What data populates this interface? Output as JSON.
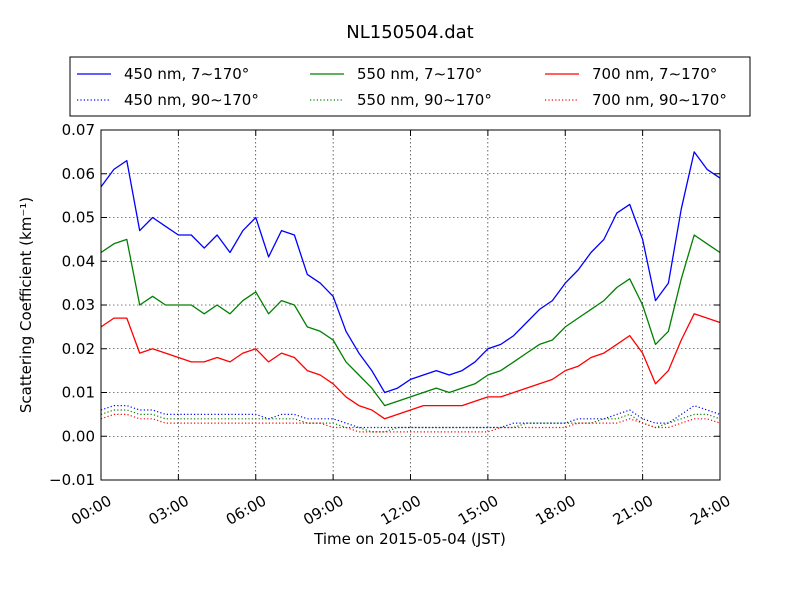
{
  "chart_data": {
    "type": "line",
    "title": "NL150504.dat",
    "xlabel": "Time on 2015-05-04 (JST)",
    "ylabel": "Scattering Coefficient (km⁻¹)",
    "xlim": [
      "00:00",
      "24:00"
    ],
    "ylim": [
      -0.01,
      0.07
    ],
    "x_ticks": [
      "00:00",
      "03:00",
      "06:00",
      "09:00",
      "12:00",
      "15:00",
      "18:00",
      "21:00",
      "24:00"
    ],
    "y_ticks": [
      "−0.01",
      "0.00",
      "0.01",
      "0.02",
      "0.03",
      "0.04",
      "0.05",
      "0.06",
      "0.07"
    ],
    "grid": true,
    "legend_position": "top, above plot (3 columns)",
    "x_hours": [
      0,
      0.5,
      1,
      1.5,
      2,
      2.5,
      3,
      3.5,
      4,
      4.5,
      5,
      5.5,
      6,
      6.5,
      7,
      7.5,
      8,
      8.5,
      9,
      9.5,
      10,
      10.5,
      11,
      11.5,
      12,
      12.5,
      13,
      13.5,
      14,
      14.5,
      15,
      15.5,
      16,
      16.5,
      17,
      17.5,
      18,
      18.5,
      19,
      19.5,
      20,
      20.5,
      21,
      21.5,
      22,
      22.5,
      23,
      23.5,
      24
    ],
    "series": [
      {
        "name": "450 nm, 7∼170°",
        "color": "#0000ff",
        "style": "solid",
        "values": [
          0.057,
          0.061,
          0.063,
          0.047,
          0.05,
          0.048,
          0.046,
          0.046,
          0.043,
          0.046,
          0.042,
          0.047,
          0.05,
          0.041,
          0.047,
          0.046,
          0.037,
          0.035,
          0.032,
          0.024,
          0.019,
          0.015,
          0.01,
          0.011,
          0.013,
          0.014,
          0.015,
          0.014,
          0.015,
          0.017,
          0.02,
          0.021,
          0.023,
          0.026,
          0.029,
          0.031,
          0.035,
          0.038,
          0.042,
          0.045,
          0.051,
          0.053,
          0.045,
          0.031,
          0.035,
          0.052,
          0.065,
          0.061,
          0.059
        ]
      },
      {
        "name": "450 nm, 90∼170°",
        "color": "#0000ff",
        "style": "dotted",
        "values": [
          0.006,
          0.007,
          0.007,
          0.006,
          0.006,
          0.005,
          0.005,
          0.005,
          0.005,
          0.005,
          0.005,
          0.005,
          0.005,
          0.004,
          0.005,
          0.005,
          0.004,
          0.004,
          0.004,
          0.003,
          0.002,
          0.002,
          0.002,
          0.002,
          0.002,
          0.002,
          0.002,
          0.002,
          0.002,
          0.002,
          0.002,
          0.002,
          0.003,
          0.003,
          0.003,
          0.003,
          0.003,
          0.004,
          0.004,
          0.004,
          0.005,
          0.006,
          0.004,
          0.003,
          0.003,
          0.005,
          0.007,
          0.006,
          0.005
        ]
      },
      {
        "name": "550 nm, 7∼170°",
        "color": "#008000",
        "style": "solid",
        "values": [
          0.042,
          0.044,
          0.045,
          0.03,
          0.032,
          0.03,
          0.03,
          0.03,
          0.028,
          0.03,
          0.028,
          0.031,
          0.033,
          0.028,
          0.031,
          0.03,
          0.025,
          0.024,
          0.022,
          0.017,
          0.014,
          0.011,
          0.007,
          0.008,
          0.009,
          0.01,
          0.011,
          0.01,
          0.011,
          0.012,
          0.014,
          0.015,
          0.017,
          0.019,
          0.021,
          0.022,
          0.025,
          0.027,
          0.029,
          0.031,
          0.034,
          0.036,
          0.03,
          0.021,
          0.024,
          0.036,
          0.046,
          0.044,
          0.042
        ]
      },
      {
        "name": "550 nm, 90∼170°",
        "color": "#008000",
        "style": "dotted",
        "values": [
          0.005,
          0.006,
          0.006,
          0.005,
          0.005,
          0.004,
          0.004,
          0.004,
          0.004,
          0.004,
          0.004,
          0.004,
          0.004,
          0.004,
          0.004,
          0.004,
          0.003,
          0.003,
          0.003,
          0.002,
          0.002,
          0.001,
          0.001,
          0.002,
          0.002,
          0.002,
          0.002,
          0.002,
          0.002,
          0.002,
          0.002,
          0.002,
          0.002,
          0.003,
          0.003,
          0.003,
          0.003,
          0.003,
          0.003,
          0.004,
          0.004,
          0.005,
          0.003,
          0.002,
          0.003,
          0.004,
          0.005,
          0.005,
          0.004
        ]
      },
      {
        "name": "700 nm, 7∼170°",
        "color": "#ff0000",
        "style": "solid",
        "values": [
          0.025,
          0.027,
          0.027,
          0.019,
          0.02,
          0.019,
          0.018,
          0.017,
          0.017,
          0.018,
          0.017,
          0.019,
          0.02,
          0.017,
          0.019,
          0.018,
          0.015,
          0.014,
          0.012,
          0.009,
          0.007,
          0.006,
          0.004,
          0.005,
          0.006,
          0.007,
          0.007,
          0.007,
          0.007,
          0.008,
          0.009,
          0.009,
          0.01,
          0.011,
          0.012,
          0.013,
          0.015,
          0.016,
          0.018,
          0.019,
          0.021,
          0.023,
          0.019,
          0.012,
          0.015,
          0.022,
          0.028,
          0.027,
          0.026
        ]
      },
      {
        "name": "700 nm, 90∼170°",
        "color": "#ff0000",
        "style": "dotted",
        "values": [
          0.004,
          0.005,
          0.005,
          0.004,
          0.004,
          0.003,
          0.003,
          0.003,
          0.003,
          0.003,
          0.003,
          0.003,
          0.003,
          0.003,
          0.003,
          0.003,
          0.003,
          0.003,
          0.002,
          0.002,
          0.001,
          0.001,
          0.001,
          0.001,
          0.001,
          0.001,
          0.001,
          0.001,
          0.001,
          0.001,
          0.001,
          0.002,
          0.002,
          0.002,
          0.002,
          0.002,
          0.002,
          0.003,
          0.003,
          0.003,
          0.003,
          0.004,
          0.003,
          0.002,
          0.002,
          0.003,
          0.004,
          0.004,
          0.003
        ]
      }
    ]
  }
}
